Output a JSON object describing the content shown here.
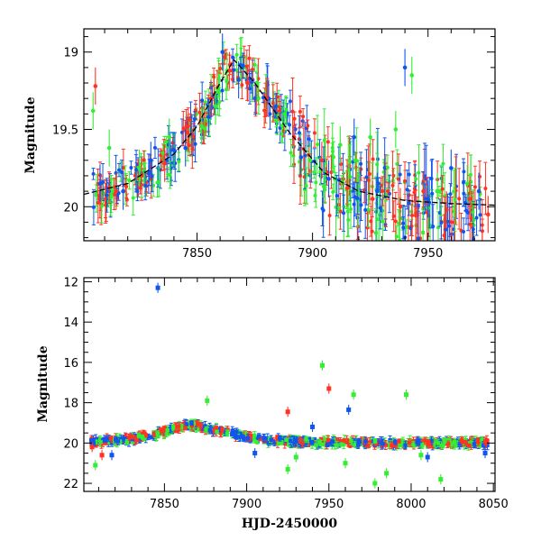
{
  "chart_data": [
    {
      "type": "scatter",
      "panel": "top",
      "ylabel": "Magnitude",
      "xlabel": "",
      "xlim": [
        7801,
        7979
      ],
      "ylim": [
        20.22,
        18.85
      ],
      "y_inverted": true,
      "xticks": [
        7850,
        7900,
        7950
      ],
      "yticks": [
        19,
        19.5,
        20
      ],
      "ytick_labels": [
        "19",
        "19.5",
        "20"
      ],
      "colors": {
        "green": "#33ee33",
        "blue": "#1155ee",
        "red": "#ff3322",
        "model": "#000000"
      },
      "model_curve": {
        "style": "dashed",
        "x": [
          7801,
          7820,
          7840,
          7850,
          7860,
          7866,
          7875,
          7890,
          7905,
          7920,
          7940,
          7960,
          7979
        ],
        "y": [
          19.92,
          19.85,
          19.66,
          19.48,
          19.2,
          19.05,
          19.2,
          19.52,
          19.78,
          19.9,
          19.96,
          19.98,
          19.99
        ]
      },
      "series": [
        {
          "color": "green",
          "x": [
            7805,
            7812,
            7825,
            7838,
            7852,
            7858,
            7863,
            7876,
            7888,
            7899,
            7912,
            7925,
            7936,
            7943,
            7954,
            7967
          ],
          "y": [
            19.38,
            19.62,
            19.75,
            19.55,
            19.48,
            19.35,
            19.12,
            19.2,
            19.4,
            19.7,
            19.6,
            19.55,
            19.5,
            19.15,
            19.9,
            19.85
          ]
        },
        {
          "color": "blue",
          "x": [
            7808,
            7818,
            7830,
            7845,
            7855,
            7861,
            7868,
            7881,
            7895,
            7907,
            7918,
            7928,
            7940,
            7950,
            7960,
            7972
          ],
          "y": [
            19.85,
            19.9,
            19.7,
            19.62,
            19.42,
            19.0,
            19.18,
            19.3,
            19.68,
            19.82,
            19.55,
            19.9,
            19.1,
            19.95,
            19.75,
            19.9
          ]
        },
        {
          "color": "red",
          "x": [
            7806,
            7815,
            7826,
            7836,
            7846,
            7856,
            7864,
            7872,
            7880,
            7892,
            7904,
            7915,
            7926,
            7938,
            7948,
            7958,
            7968,
            7976
          ],
          "y": [
            19.22,
            19.9,
            19.8,
            19.72,
            19.52,
            19.3,
            19.12,
            19.2,
            19.3,
            19.55,
            19.7,
            19.88,
            19.95,
            20.0,
            19.9,
            20.02,
            19.95,
            20.05
          ]
        }
      ]
    },
    {
      "type": "scatter",
      "panel": "bottom",
      "ylabel": "Magnitude",
      "xlabel": "HJD-2450000",
      "xlim": [
        7801,
        8051
      ],
      "ylim": [
        22.4,
        11.8
      ],
      "y_inverted": true,
      "xticks": [
        7850,
        7900,
        7950,
        8000,
        8050
      ],
      "yticks": [
        12,
        14,
        16,
        18,
        20,
        22
      ],
      "colors": {
        "green": "#33ee33",
        "blue": "#1155ee",
        "red": "#ff3322"
      },
      "series": [
        {
          "color": "green",
          "x": [
            7808,
            7876,
            7925,
            7946,
            7965,
            7978,
            7997,
            8006,
            8018,
            7930,
            7960,
            7985
          ],
          "y": [
            21.1,
            17.9,
            21.3,
            16.15,
            17.6,
            22.0,
            17.6,
            20.6,
            21.8,
            20.7,
            21.0,
            21.5
          ]
        },
        {
          "color": "blue",
          "x": [
            7846,
            7818,
            7905,
            7940,
            7962,
            8010,
            8045
          ],
          "y": [
            12.3,
            20.6,
            20.5,
            19.2,
            18.35,
            20.7,
            20.5
          ]
        },
        {
          "color": "red",
          "x": [
            7925,
            7950,
            7806,
            7812
          ],
          "y": [
            18.45,
            17.3,
            20.2,
            20.6
          ]
        }
      ],
      "band": {
        "x": [
          7805,
          7830,
          7850,
          7865,
          7890,
          7910,
          7940,
          7970,
          8000,
          8045
        ],
        "y": [
          19.95,
          19.8,
          19.45,
          19.1,
          19.5,
          19.85,
          19.95,
          20.0,
          20.0,
          20.0
        ]
      }
    }
  ]
}
